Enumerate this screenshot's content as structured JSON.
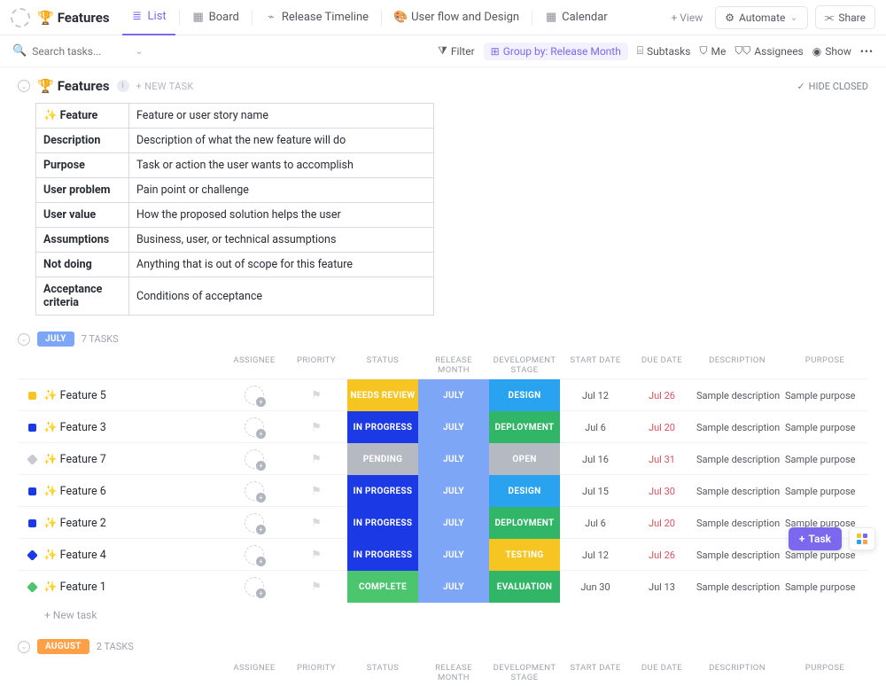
{
  "header": {
    "title": "Features",
    "title_emoji": "🏆",
    "tabs": [
      {
        "label": "List",
        "icon": "list",
        "color": "#7b68ee",
        "active": true
      },
      {
        "label": "Board",
        "icon": "board",
        "color": "#8a8f98"
      },
      {
        "label": "Release Timeline",
        "icon": "timeline",
        "color": "#8a8f98"
      },
      {
        "label": "User flow and Design",
        "icon": "design",
        "emoji": "🎨",
        "color": "#8a8f98"
      },
      {
        "label": "Calendar",
        "icon": "calendar",
        "color": "#8a8f98"
      }
    ],
    "add_view": "+  View",
    "automate": "Automate",
    "share": "Share"
  },
  "toolbar": {
    "search_placeholder": "Search tasks...",
    "filter": "Filter",
    "group_by": "Group by: Release Month",
    "subtasks": "Subtasks",
    "me": "Me",
    "assignees": "Assignees",
    "show": "Show"
  },
  "features_group": {
    "title": "Features",
    "emoji": "🏆",
    "new_task": "+ NEW TASK",
    "hide_closed": "HIDE CLOSED"
  },
  "definitions": [
    {
      "k": "✨ Feature",
      "v": "Feature or user story name"
    },
    {
      "k": "Description",
      "v": "Description of what the new feature will do"
    },
    {
      "k": "Purpose",
      "v": "Task or action the user wants to accomplish"
    },
    {
      "k": "User problem",
      "v": "Pain point or challenge"
    },
    {
      "k": "User value",
      "v": "How the proposed solution helps the user"
    },
    {
      "k": "Assumptions",
      "v": "Business, user, or technical assumptions"
    },
    {
      "k": "Not doing",
      "v": "Anything that is out of scope for this feature"
    },
    {
      "k": "Acceptance criteria",
      "v": "Conditions of acceptance"
    }
  ],
  "columns": [
    "",
    "ASSIGNEE",
    "PRIORITY",
    "STATUS",
    "RELEASE MONTH",
    "DEVELOPMENT STAGE",
    "START DATE",
    "DUE DATE",
    "DESCRIPTION",
    "PURPOSE"
  ],
  "status_colors": {
    "NEEDS REVIEW": "#f6c522",
    "IN PROGRESS": "#1c39e6",
    "PENDING": "#b4b9c2",
    "COMPLETE": "#4cc66e"
  },
  "stage_colors": {
    "DESIGN": "#29a3ef",
    "DEPLOYMENT": "#31b566",
    "OPEN": "#b4b9c2",
    "TESTING": "#f6c522",
    "EVALUATION": "#31b566"
  },
  "month_color": "#7ea6f6",
  "groups": [
    {
      "name": "JULY",
      "pill_color": "#7ea6f6",
      "count": "7 TASKS",
      "rows": [
        {
          "sq": "#f6c522",
          "shape": "sq",
          "name": "✨ Feature 5",
          "status": "NEEDS REVIEW",
          "month": "JULY",
          "stage": "DESIGN",
          "start": "Jul 12",
          "due": "Jul 26",
          "due_red": true,
          "desc": "Sample description",
          "purpose": "Sample purpose"
        },
        {
          "sq": "#1c39e6",
          "shape": "sq",
          "name": "✨ Feature 3",
          "status": "IN PROGRESS",
          "month": "JULY",
          "stage": "DEPLOYMENT",
          "start": "Jul 6",
          "due": "Jul 20",
          "due_red": true,
          "desc": "Sample description",
          "purpose": "Sample purpose"
        },
        {
          "sq": "#c7cad1",
          "shape": "diamond",
          "name": "✨ Feature 7",
          "status": "PENDING",
          "month": "JULY",
          "stage": "OPEN",
          "start": "Jul 16",
          "due": "Jul 31",
          "due_red": true,
          "desc": "Sample description",
          "purpose": "Sample purpose"
        },
        {
          "sq": "#1c39e6",
          "shape": "sq",
          "name": "✨ Feature 6",
          "status": "IN PROGRESS",
          "month": "JULY",
          "stage": "DESIGN",
          "start": "Jul 15",
          "due": "Jul 30",
          "due_red": true,
          "desc": "Sample description",
          "purpose": "Sample purpose"
        },
        {
          "sq": "#1c39e6",
          "shape": "sq",
          "name": "✨ Feature 2",
          "status": "IN PROGRESS",
          "month": "JULY",
          "stage": "DEPLOYMENT",
          "start": "Jul 6",
          "due": "Jul 20",
          "due_red": true,
          "desc": "Sample description",
          "purpose": "Sample purpose"
        },
        {
          "sq": "#1c39e6",
          "shape": "diamond",
          "name": "✨ Feature 4",
          "status": "IN PROGRESS",
          "month": "JULY",
          "stage": "TESTING",
          "start": "Jul 12",
          "due": "Jul 26",
          "due_red": true,
          "desc": "Sample description",
          "purpose": "Sample purpose"
        },
        {
          "sq": "#4cc66e",
          "shape": "diamond",
          "name": "✨ Feature 1",
          "status": "COMPLETE",
          "month": "JULY",
          "stage": "EVALUATION",
          "start": "Jun 30",
          "due": "Jul 13",
          "due_red": false,
          "desc": "Sample description",
          "purpose": "Sample purpose"
        }
      ],
      "new_row": "+ New task"
    },
    {
      "name": "AUGUST",
      "pill_color": "#ff9f46",
      "count": "2 TASKS",
      "rows": []
    }
  ],
  "fab": {
    "task": "Task"
  }
}
